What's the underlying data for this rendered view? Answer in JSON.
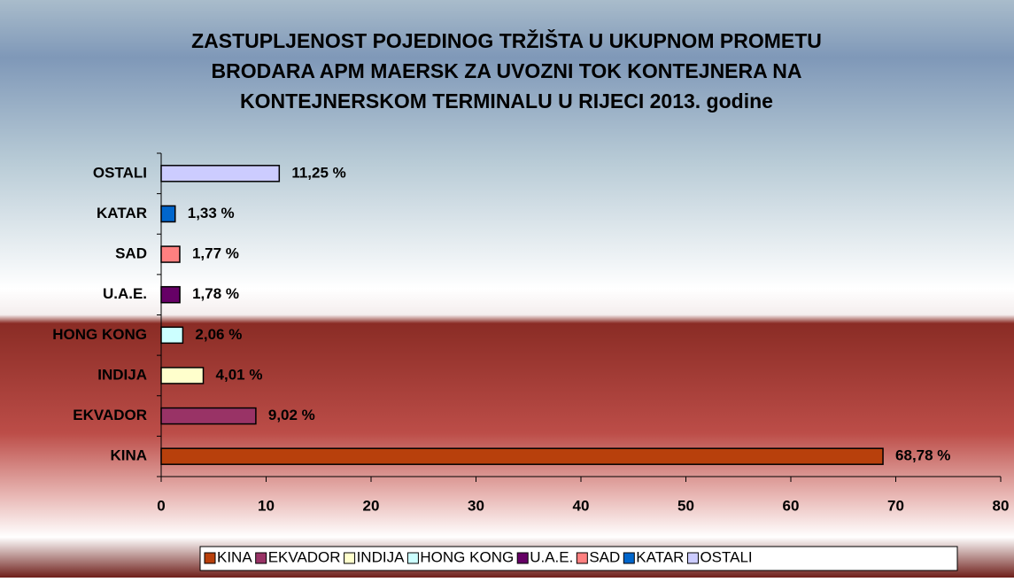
{
  "chart_data": {
    "type": "bar",
    "orientation": "horizontal",
    "title": [
      "ZASTUPLJENOST POJEDINOG TRŽIŠTA U UKUPNOM PROMETU",
      "BRODARA APM MAERSK ZA UVOZNI TOK KONTEJNERA NA",
      "KONTEJNERSKOM TERMINALU U RIJECI 2013. godine"
    ],
    "categories": [
      "KINA",
      "EKVADOR",
      "INDIJA",
      "HONG KONG",
      "U.A.E.",
      "SAD",
      "KATAR",
      "OSTALI"
    ],
    "values": [
      68.78,
      9.02,
      4.01,
      2.06,
      1.78,
      1.77,
      1.33,
      11.25
    ],
    "value_labels": [
      "68,78 %",
      "9,02 %",
      "4,01 %",
      "2,06 %",
      "1,78 %",
      "1,77 %",
      "1,33 %",
      "11,25 %"
    ],
    "colors": [
      "#b8400c",
      "#993366",
      "#ffffcc",
      "#ccffff",
      "#660066",
      "#ff8080",
      "#0066cc",
      "#ccccff"
    ],
    "xlim": [
      0,
      80
    ],
    "xticks": [
      0,
      10,
      20,
      30,
      40,
      50,
      60,
      70,
      80
    ],
    "legend": "bottom"
  }
}
